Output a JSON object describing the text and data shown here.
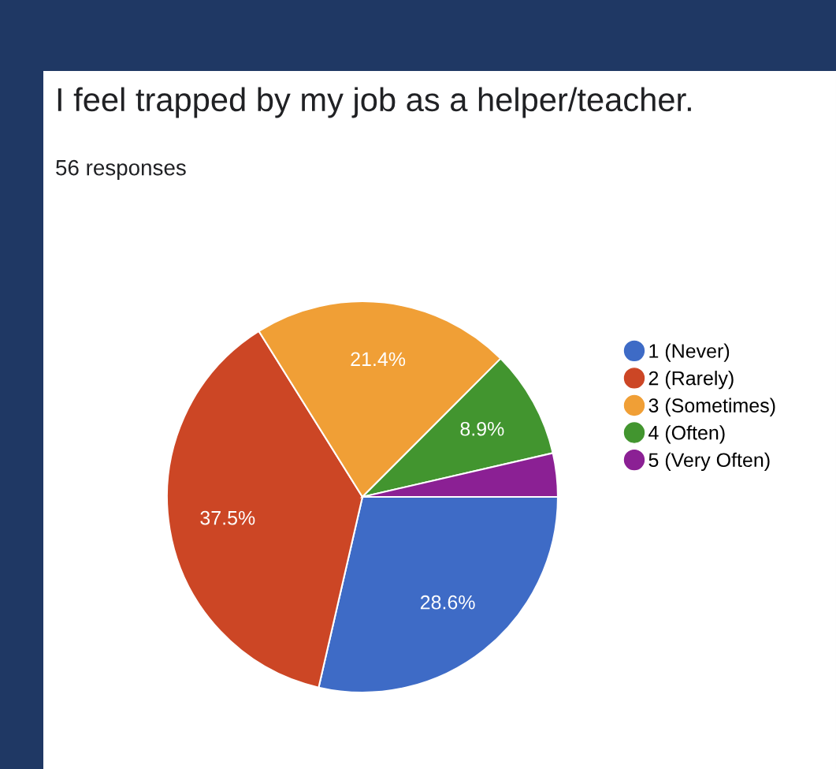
{
  "chart_data": {
    "type": "pie",
    "title": "I feel trapped by my job as a helper/teacher.",
    "subtitle": "56 responses",
    "categories": [
      "1 (Never)",
      "2 (Rarely)",
      "3 (Sometimes)",
      "4 (Often)",
      "5 (Very Often)"
    ],
    "values": [
      28.6,
      37.5,
      21.4,
      8.9,
      3.6
    ],
    "colors": [
      "#3e6bc6",
      "#cc4625",
      "#f09f36",
      "#42952f",
      "#8b2094"
    ],
    "value_labels": [
      "28.6%",
      "37.5%",
      "21.4%",
      "8.9%",
      null
    ],
    "legend": "right"
  }
}
